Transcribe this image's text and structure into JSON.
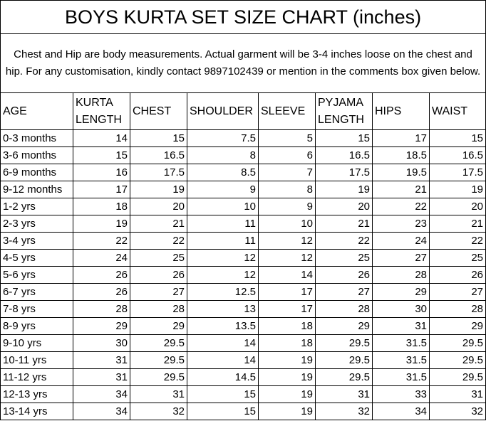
{
  "title": "BOYS KURTA SET SIZE CHART (inches)",
  "note": "Chest and Hip are body measurements. Actual garment will be 3-4 inches loose on the chest and hip. For any customisation, kindly contact 9897102439 or mention in the comments box given below.",
  "table": {
    "columns": [
      "AGE",
      "KURTA LENGTH",
      "CHEST",
      "SHOULDER",
      "SLEEVE",
      "PYJAMA LENGTH",
      "HIPS",
      "WAIST"
    ],
    "rows": [
      [
        "0-3 months",
        14,
        15,
        7.5,
        5,
        15,
        17,
        15
      ],
      [
        "3-6 months",
        15,
        16.5,
        8,
        6,
        16.5,
        18.5,
        16.5
      ],
      [
        "6-9 months",
        16,
        17.5,
        8.5,
        7,
        17.5,
        19.5,
        17.5
      ],
      [
        "9-12 months",
        17,
        19,
        9,
        8,
        19,
        21,
        19
      ],
      [
        "1-2 yrs",
        18,
        20,
        10,
        9,
        20,
        22,
        20
      ],
      [
        "2-3 yrs",
        19,
        21,
        11,
        10,
        21,
        23,
        21
      ],
      [
        "3-4 yrs",
        22,
        22,
        11,
        12,
        22,
        24,
        22
      ],
      [
        "4-5 yrs",
        24,
        25,
        12,
        12,
        25,
        27,
        25
      ],
      [
        "5-6 yrs",
        26,
        26,
        12,
        14,
        26,
        28,
        26
      ],
      [
        "6-7 yrs",
        26,
        27,
        12.5,
        17,
        27,
        29,
        27
      ],
      [
        "7-8 yrs",
        28,
        28,
        13,
        17,
        28,
        30,
        28
      ],
      [
        "8-9 yrs",
        29,
        29,
        13.5,
        18,
        29,
        31,
        29
      ],
      [
        "9-10 yrs",
        30,
        29.5,
        14,
        18,
        29.5,
        31.5,
        29.5
      ],
      [
        "10-11 yrs",
        31,
        29.5,
        14,
        19,
        29.5,
        31.5,
        29.5
      ],
      [
        "11-12 yrs",
        31,
        29.5,
        14.5,
        19,
        29.5,
        31.5,
        29.5
      ],
      [
        "12-13 yrs",
        34,
        31,
        15,
        19,
        31,
        33,
        31
      ],
      [
        "13-14 yrs",
        34,
        32,
        15,
        19,
        32,
        34,
        32
      ]
    ]
  }
}
